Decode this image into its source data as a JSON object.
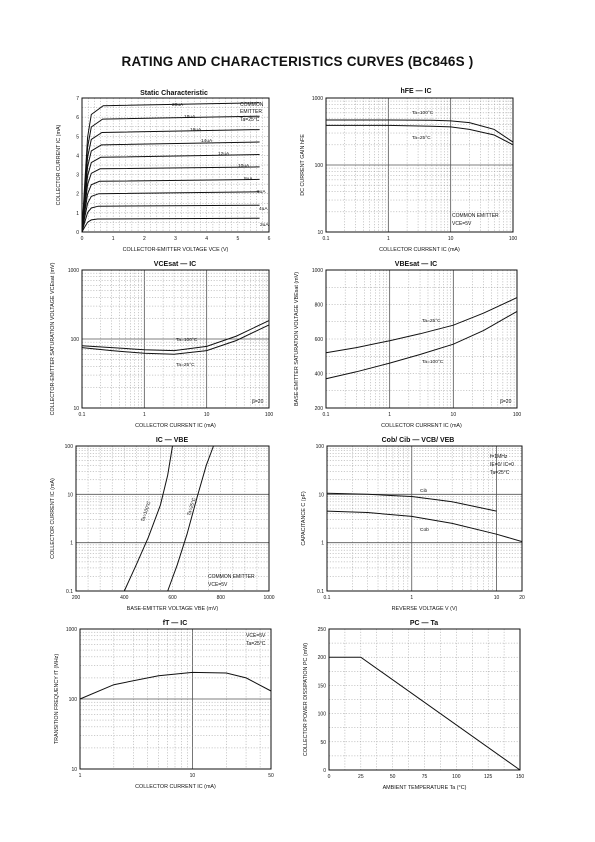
{
  "page_title": "RATING AND CHARACTERISTICS CURVES (BC846S )",
  "chart_data": [
    {
      "id": "c1",
      "type": "line",
      "title": "Static Characteristic",
      "xlabel": "COLLECTOR-EMITTER VOLTAGE  VCE  (V)",
      "ylabel": "COLLECTOR CURRENT  IC  (mA)",
      "xscale": "linear",
      "yscale": "linear",
      "xlim": [
        0,
        6
      ],
      "ylim": [
        0,
        7
      ],
      "xticks": [
        "0",
        "1",
        "2",
        "3",
        "4",
        "5",
        "6"
      ],
      "yticks": [
        "0",
        "1",
        "2",
        "3",
        "4",
        "5",
        "6",
        "7"
      ],
      "annotations": [
        "COMMON",
        "EMITTER",
        "Ta=25°C"
      ],
      "series": [
        {
          "name": "20uA",
          "sat": 6.6,
          "end": 6.75
        },
        {
          "name": "18uA",
          "sat": 5.9,
          "end": 6.05
        },
        {
          "name": "16uA",
          "sat": 5.2,
          "end": 5.35
        },
        {
          "name": "14uA",
          "sat": 4.55,
          "end": 4.7
        },
        {
          "name": "12uA",
          "sat": 3.9,
          "end": 4.05
        },
        {
          "name": "10uA",
          "sat": 3.3,
          "end": 3.4
        },
        {
          "name": "8uA",
          "sat": 2.65,
          "end": 2.75
        },
        {
          "name": "6uA",
          "sat": 2.0,
          "end": 2.1
        },
        {
          "name": "4uA",
          "sat": 1.35,
          "end": 1.4
        },
        {
          "name": "2uA",
          "sat": 0.68,
          "end": 0.72
        }
      ]
    },
    {
      "id": "c2",
      "type": "line",
      "title": "hFE — IC",
      "xlabel": "COLLECTOR CURRENT  IC  (mA)",
      "ylabel": "DC CURRENT GAIN  hFE",
      "xscale": "log",
      "yscale": "log",
      "xlim": [
        0.1,
        100
      ],
      "ylim": [
        10,
        1000
      ],
      "xticks": [
        "0.1",
        "1",
        "10",
        "100"
      ],
      "yticks": [
        "10",
        "100",
        "1000"
      ],
      "annotations": [
        "COMMON EMITTER",
        "VCE=5V"
      ],
      "series": [
        {
          "name": "Ta=100°C",
          "x": [
            0.1,
            1,
            5,
            10,
            20,
            50,
            100
          ],
          "y": [
            470,
            470,
            465,
            455,
            430,
            340,
            220
          ]
        },
        {
          "name": "Ta=25°C",
          "x": [
            0.1,
            1,
            5,
            10,
            20,
            50,
            100
          ],
          "y": [
            390,
            390,
            380,
            370,
            340,
            280,
            200
          ]
        }
      ]
    },
    {
      "id": "c3",
      "type": "line",
      "title": "VCEsat — IC",
      "xlabel": "COLLECTOR CURRENT  IC  (mA)",
      "ylabel": "COLLECTOR-EMITTER SATURATION VOLTAGE  VCEsat  (mV)",
      "xscale": "log",
      "yscale": "log",
      "xlim": [
        0.1,
        100
      ],
      "ylim": [
        10,
        1000
      ],
      "xticks": [
        "0.1",
        "1",
        "10",
        "100"
      ],
      "yticks": [
        "10",
        "100",
        "1000"
      ],
      "annotations": [
        "β=20"
      ],
      "series": [
        {
          "name": "Ta=100°C",
          "x": [
            0.1,
            0.3,
            1,
            3,
            10,
            30,
            100
          ],
          "y": [
            80,
            75,
            70,
            68,
            78,
            110,
            185
          ]
        },
        {
          "name": "Ta=25°C",
          "x": [
            0.1,
            0.3,
            1,
            3,
            10,
            30,
            100
          ],
          "y": [
            75,
            68,
            62,
            60,
            68,
            95,
            160
          ]
        }
      ]
    },
    {
      "id": "c4",
      "type": "line",
      "title": "VBEsat — IC",
      "xlabel": "COLLECTOR CURRENT  IC  (mA)",
      "ylabel": "BASE-EMITTER SATURATION VOLTAGE  VBEsat  (mV)",
      "xscale": "log",
      "yscale": "linear",
      "xlim": [
        0.1,
        100
      ],
      "ylim": [
        200,
        1000
      ],
      "xticks": [
        "0.1",
        "1",
        "10",
        "100"
      ],
      "yticks": [
        "200",
        "400",
        "600",
        "800",
        "1000"
      ],
      "annotations": [
        "β=20"
      ],
      "series": [
        {
          "name": "Ta=25°C",
          "x": [
            0.1,
            0.3,
            1,
            3,
            10,
            30,
            100
          ],
          "y": [
            520,
            550,
            590,
            630,
            680,
            750,
            840
          ]
        },
        {
          "name": "Ta=100°C",
          "x": [
            0.1,
            0.3,
            1,
            3,
            10,
            30,
            100
          ],
          "y": [
            370,
            410,
            460,
            510,
            570,
            650,
            760
          ]
        }
      ]
    },
    {
      "id": "c5",
      "type": "line",
      "title": "IC — VBE",
      "xlabel": "BASE-EMITTER VOLTAGE  VBE  (mV)",
      "ylabel": "COLLECTOR CURRENT  IC  (mA)",
      "xscale": "linear",
      "yscale": "log",
      "xlim": [
        200,
        1000
      ],
      "ylim": [
        0.1,
        100
      ],
      "xticks": [
        "200",
        "400",
        "600",
        "800",
        "1000"
      ],
      "yticks": [
        "0.1",
        "1",
        "10",
        "100"
      ],
      "annotations": [
        "COMMON EMITTER",
        "VCE=5V"
      ],
      "series": [
        {
          "name": "Ta=100°C",
          "x": [
            400,
            450,
            500,
            550,
            580,
            600
          ],
          "y": [
            0.1,
            0.35,
            1.3,
            6,
            25,
            100
          ]
        },
        {
          "name": "Ta=25°C",
          "x": [
            580,
            620,
            660,
            700,
            740,
            770
          ],
          "y": [
            0.1,
            0.35,
            1.5,
            8,
            40,
            100
          ]
        }
      ]
    },
    {
      "id": "c6",
      "type": "line",
      "title": "Cob/ Cib — VCB/ VEB",
      "xlabel": "REVERSE VOLTAGE  V  (V)",
      "ylabel": "CAPACITANCE  C  (pF)",
      "xscale": "log",
      "yscale": "log",
      "xlim": [
        0.1,
        20
      ],
      "ylim": [
        0.1,
        100
      ],
      "xticks": [
        "0.1",
        "1",
        "10",
        "20"
      ],
      "yticks": [
        "0.1",
        "1",
        "10",
        "100"
      ],
      "annotations": [
        "f=1MHz",
        "IE=0/ IC=0",
        "Ta=25°C"
      ],
      "series": [
        {
          "name": "Cib",
          "x": [
            0.1,
            0.3,
            1,
            3,
            10
          ],
          "y": [
            10.5,
            10,
            9,
            7,
            4.5
          ]
        },
        {
          "name": "Cob",
          "x": [
            0.1,
            0.3,
            1,
            3,
            10,
            20
          ],
          "y": [
            4.5,
            4.2,
            3.5,
            2.5,
            1.5,
            1.05
          ]
        }
      ]
    },
    {
      "id": "c7",
      "type": "line",
      "title": "fT — IC",
      "xlabel": "COLLECTOR CURRENT  IC  (mA)",
      "ylabel": "TRANSITION FREQUENCY  fT  (MHz)",
      "xscale": "log",
      "yscale": "log",
      "xlim": [
        1,
        50
      ],
      "ylim": [
        10,
        1000
      ],
      "xticks": [
        "1",
        "10",
        "50"
      ],
      "yticks": [
        "10",
        "100",
        "1000"
      ],
      "annotations": [
        "VCE=5V",
        "Ta=25°C"
      ],
      "series": [
        {
          "name": "",
          "x": [
            1,
            2,
            5,
            10,
            20,
            30,
            50
          ],
          "y": [
            100,
            160,
            215,
            240,
            235,
            200,
            130
          ]
        }
      ]
    },
    {
      "id": "c8",
      "type": "line",
      "title": "PC — Ta",
      "xlabel": "AMBIENT TEMPERATURE  Ta  (°C)",
      "ylabel": "COLLECTOR POWER DISSIPATION  PC  (mW)",
      "xscale": "linear",
      "yscale": "linear",
      "xlim": [
        0,
        150
      ],
      "ylim": [
        0,
        250
      ],
      "xticks": [
        "0",
        "25",
        "50",
        "75",
        "100",
        "125",
        "150"
      ],
      "yticks": [
        "0",
        "50",
        "100",
        "150",
        "200",
        "250"
      ],
      "annotations": [],
      "series": [
        {
          "name": "",
          "x": [
            0,
            25,
            150
          ],
          "y": [
            200,
            200,
            0
          ]
        }
      ]
    }
  ]
}
